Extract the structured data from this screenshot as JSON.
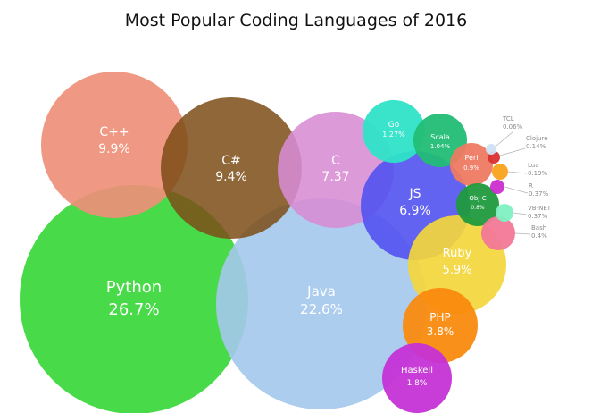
{
  "title": "Most Popular Coding Languages of 2016",
  "chart_data": {
    "type": "bubble",
    "title": "Most Popular Coding Languages of 2016",
    "unit": "%",
    "series": [
      {
        "name": "Python",
        "value": 26.7,
        "value_label": "26.7%",
        "color": "#3fd83f"
      },
      {
        "name": "Java",
        "value": 22.6,
        "value_label": "22.6%",
        "color": "#a4c8ec"
      },
      {
        "name": "C++",
        "value": 9.9,
        "value_label": "9.9%",
        "color": "#ee8f78"
      },
      {
        "name": "C#",
        "value": 9.4,
        "value_label": "9.4%",
        "color": "#7d4e17"
      },
      {
        "name": "C",
        "value": 7.37,
        "value_label": "7.37",
        "color": "#d88cd4"
      },
      {
        "name": "JS",
        "value": 6.9,
        "value_label": "6.9%",
        "color": "#5252f0"
      },
      {
        "name": "Ruby",
        "value": 5.9,
        "value_label": "5.9%",
        "color": "#f3d63c"
      },
      {
        "name": "PHP",
        "value": 3.8,
        "value_label": "3.8%",
        "color": "#f98a0e"
      },
      {
        "name": "Haskell",
        "value": 1.8,
        "value_label": "1.8%",
        "color": "#c532d6"
      },
      {
        "name": "Go",
        "value": 1.27,
        "value_label": "1.27%",
        "color": "#2ee3c8"
      },
      {
        "name": "Scala",
        "value": 1.04,
        "value_label": "1.04%",
        "color": "#22bd76"
      },
      {
        "name": "Perl",
        "value": 0.9,
        "value_label": "0.9%",
        "color": "#ee7a62"
      },
      {
        "name": "Obj-C",
        "value": 0.8,
        "value_label": "0.8%",
        "color": "#1f9a3d"
      },
      {
        "name": "Bash",
        "value": 0.4,
        "value_label": "0.4%",
        "color": "#f27897"
      },
      {
        "name": "VB-NET",
        "value": 0.37,
        "value_label": "0.37%",
        "color": "#7ff0c1"
      },
      {
        "name": "R",
        "value": 0.37,
        "value_label": "0.37%",
        "color": "#cc2ecf"
      },
      {
        "name": "Lua",
        "value": 0.19,
        "value_label": "0.19%",
        "color": "#f8a21a"
      },
      {
        "name": "Clojure",
        "value": 0.14,
        "value_label": "0.14%",
        "color": "#d83030"
      },
      {
        "name": "TCL",
        "value": 0.06,
        "value_label": "0.06%",
        "color": "#cfe0f4"
      }
    ]
  }
}
